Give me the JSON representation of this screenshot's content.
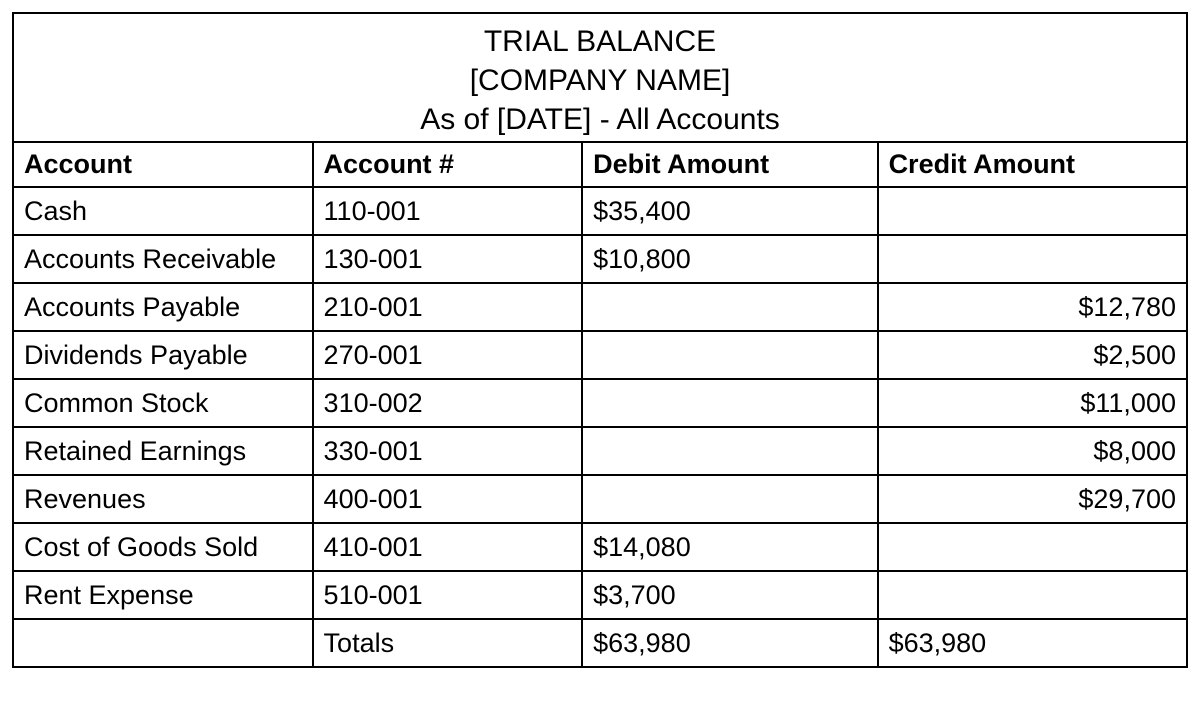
{
  "title": {
    "line1": "TRIAL BALANCE",
    "line2": "[COMPANY NAME]",
    "line3": "As of [DATE] - All Accounts"
  },
  "columns": {
    "account": "Account",
    "account_num": "Account #",
    "debit": "Debit Amount",
    "credit": "Credit Amount"
  },
  "column_widths": {
    "account": 300,
    "account_num": 270,
    "debit": 296,
    "credit": 310
  },
  "rows": [
    {
      "account": "Cash",
      "account_num": "110-001",
      "debit": "$35,400",
      "credit": "",
      "credit_align": "left"
    },
    {
      "account": "Accounts Receivable",
      "account_num": "130-001",
      "debit": "$10,800",
      "credit": "",
      "credit_align": "left"
    },
    {
      "account": "Accounts Payable",
      "account_num": "210-001",
      "debit": "",
      "credit": "$12,780",
      "credit_align": "right"
    },
    {
      "account": "Dividends Payable",
      "account_num": "270-001",
      "debit": "",
      "credit": "$2,500",
      "credit_align": "right"
    },
    {
      "account": "Common Stock",
      "account_num": "310-002",
      "debit": "",
      "credit": "$11,000",
      "credit_align": "right"
    },
    {
      "account": "Retained Earnings",
      "account_num": "330-001",
      "debit": "",
      "credit": "$8,000",
      "credit_align": "right"
    },
    {
      "account": "Revenues",
      "account_num": "400-001",
      "debit": "",
      "credit": "$29,700",
      "credit_align": "right"
    },
    {
      "account": "Cost of Goods Sold",
      "account_num": "410-001",
      "debit": "$14,080",
      "credit": "",
      "credit_align": "left"
    },
    {
      "account": "Rent Expense",
      "account_num": "510-001",
      "debit": "$3,700",
      "credit": "",
      "credit_align": "left"
    }
  ],
  "totals": {
    "label": "Totals",
    "debit": "$63,980",
    "credit": "$63,980"
  },
  "style": {
    "font_family": "Arial, Helvetica, sans-serif",
    "title_fontsize": 30,
    "title_fontweight": 400,
    "header_fontsize": 27,
    "header_fontweight": 700,
    "cell_fontsize": 27,
    "cell_fontweight": 400,
    "border_color": "#000000",
    "border_width": 2,
    "background_color": "#ffffff",
    "text_color": "#000000"
  }
}
